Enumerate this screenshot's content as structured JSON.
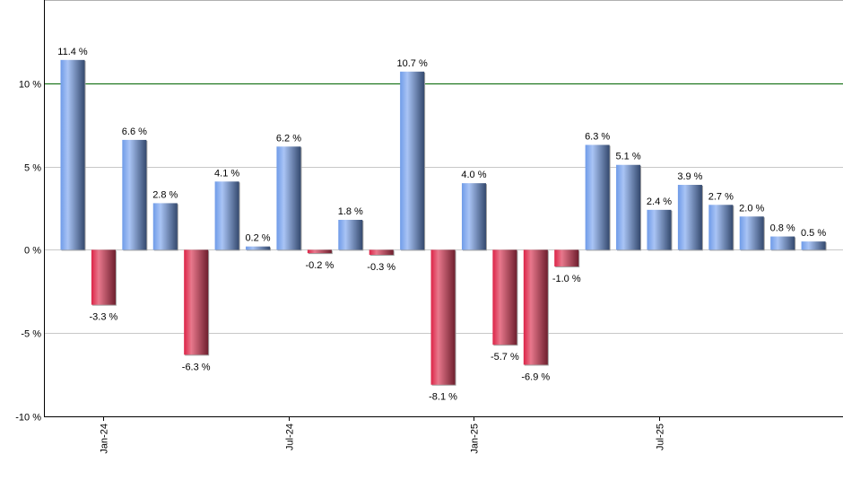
{
  "chart_data": {
    "type": "bar",
    "categories": [
      "Dec-23",
      "Jan-24",
      "Feb-24",
      "Mar-24",
      "Apr-24",
      "May-24",
      "Jun-24",
      "Jul-24",
      "Aug-24",
      "Sep-24",
      "Oct-24",
      "Nov-24",
      "Dec-24",
      "Jan-25",
      "Feb-25",
      "Mar-25",
      "Apr-25",
      "May-25",
      "Jun-25",
      "Jul-25",
      "Aug-25",
      "Sep-25",
      "Oct-25",
      "Nov-25",
      "Dec-25"
    ],
    "values": [
      11.4,
      -3.3,
      6.6,
      2.8,
      -6.3,
      4.1,
      0.2,
      6.2,
      -0.2,
      1.8,
      -0.3,
      10.7,
      -8.1,
      4.0,
      -5.7,
      -6.9,
      -1.0,
      6.3,
      5.1,
      2.4,
      3.9,
      2.7,
      2.0,
      0.8,
      0.5
    ],
    "data_labels": [
      "11.4 %",
      "-3.3 %",
      "6.6 %",
      "2.8 %",
      "-6.3 %",
      "4.1 %",
      "0.2 %",
      "6.2 %",
      "-0.2 %",
      "1.8 %",
      "-0.3 %",
      "10.7 %",
      "-8.1 %",
      "4.0 %",
      "-5.7 %",
      "-6.9 %",
      "-1.0 %",
      "6.3 %",
      "5.1 %",
      "2.4 %",
      "3.9 %",
      "2.7 %",
      "2.0 %",
      "0.8 %",
      "0.5 %"
    ],
    "x_tick_labels": [
      {
        "category": "Jan-24",
        "label": "Jan-24"
      },
      {
        "category": "Jul-24",
        "label": "Jul-24"
      },
      {
        "category": "Jan-25",
        "label": "Jan-25"
      },
      {
        "category": "Jul-25",
        "label": "Jul-25"
      }
    ],
    "y_ticks": [
      {
        "value": -10,
        "label": "-10 %"
      },
      {
        "value": -5,
        "label": "-5 %"
      },
      {
        "value": 0,
        "label": "0 %"
      },
      {
        "value": 5,
        "label": "5 %"
      },
      {
        "value": 10,
        "label": "10 %"
      }
    ],
    "title": "",
    "xlabel": "",
    "ylabel": "",
    "ylim": [
      -10,
      15
    ],
    "grid": true,
    "reference_line": {
      "value": 10,
      "color": "#006400"
    },
    "colors": {
      "positive": "#7fa6e8",
      "negative": "#dc2a4a",
      "grid": "#c8c8c8"
    }
  }
}
